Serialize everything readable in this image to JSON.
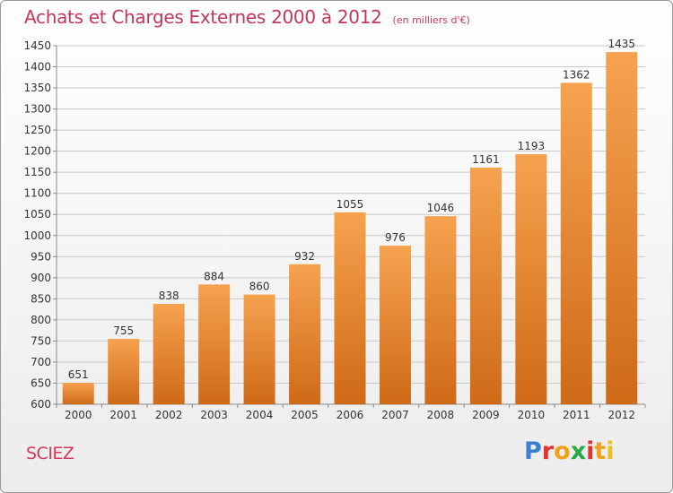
{
  "title": "Achats et Charges Externes 2000 à 2012",
  "unit_note": "(en milliers d'€)",
  "city": "SCIEZ",
  "logo": {
    "text": "Proxiti",
    "letter_colors": [
      "#3a7fd0",
      "#e4352d",
      "#f2a11e",
      "#2aa84a",
      "#e4352d",
      "#f2a11e",
      "#e8c31f"
    ]
  },
  "colors": {
    "bar_top": "#f6a24f",
    "bar_bottom": "#cf6a17",
    "grid": "#c8c8c8",
    "axis": "#8a8a8a",
    "title": "#c0395a"
  },
  "chart_data": {
    "type": "bar",
    "categories": [
      "2000",
      "2001",
      "2002",
      "2003",
      "2004",
      "2005",
      "2006",
      "2007",
      "2008",
      "2009",
      "2010",
      "2011",
      "2012"
    ],
    "values": [
      651,
      755,
      838,
      884,
      860,
      932,
      1055,
      976,
      1046,
      1161,
      1193,
      1362,
      1435
    ],
    "ylim": [
      600,
      1450
    ],
    "yticks": [
      600,
      650,
      700,
      750,
      800,
      850,
      900,
      950,
      1000,
      1050,
      1100,
      1150,
      1200,
      1250,
      1300,
      1350,
      1400,
      1450
    ],
    "grid": true,
    "data_labels": true
  }
}
